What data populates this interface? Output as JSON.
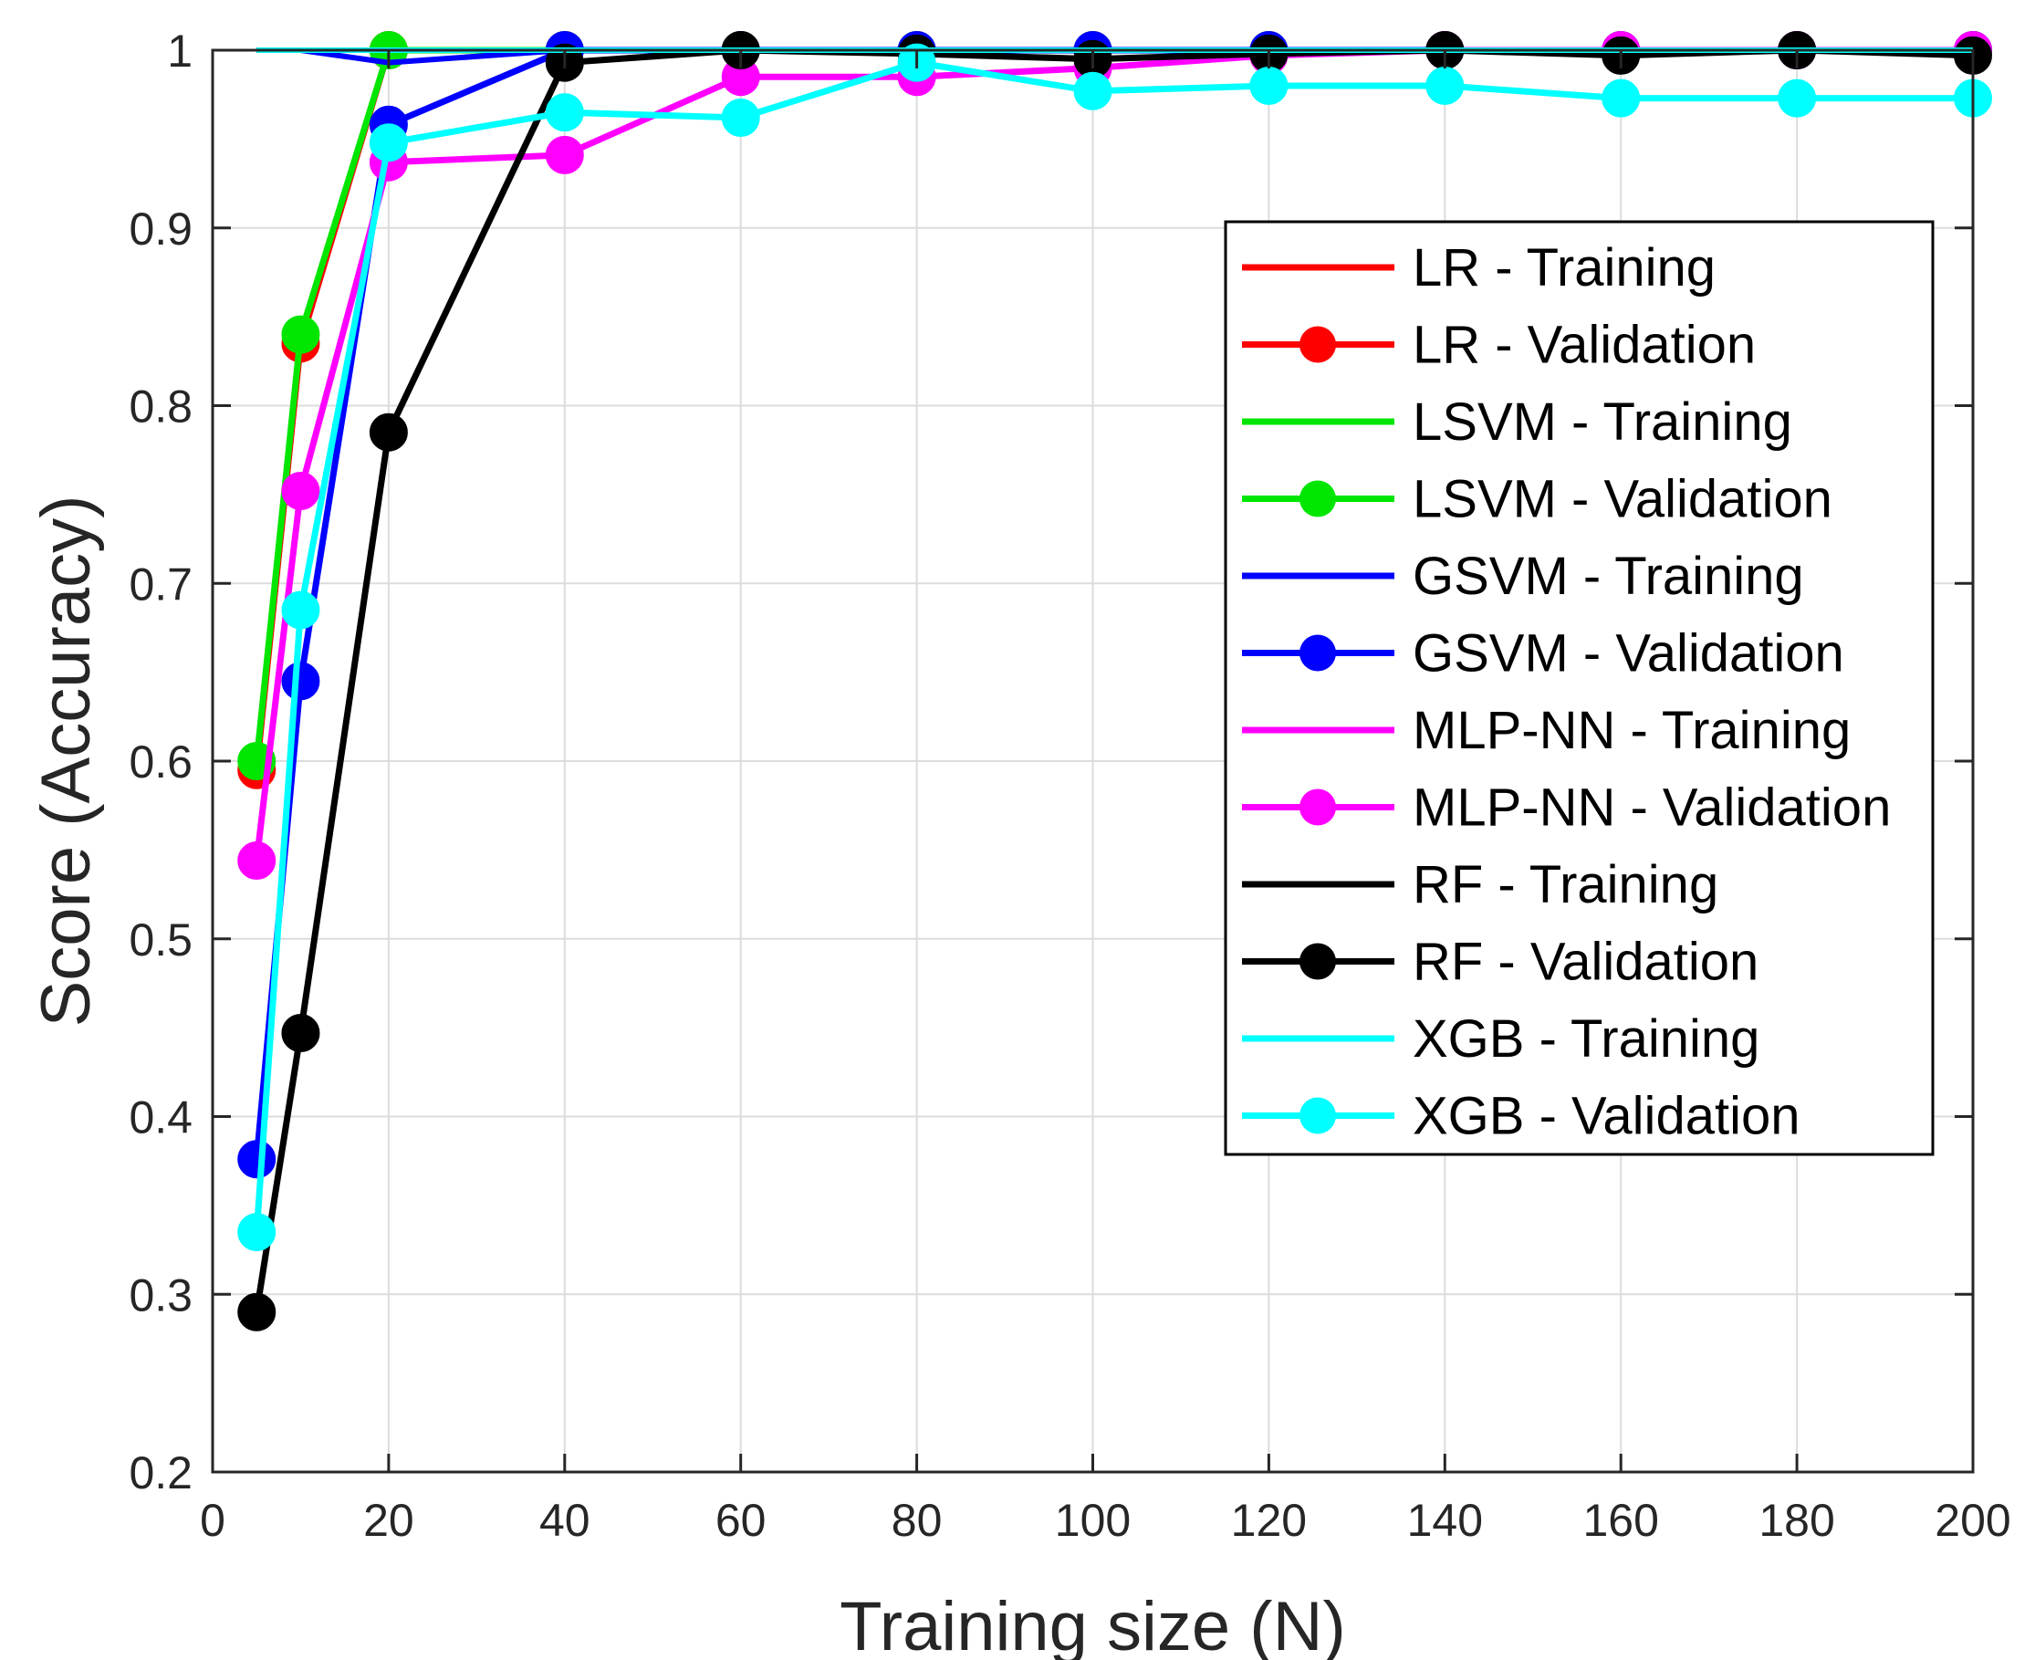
{
  "chart_data": {
    "type": "line",
    "title": "",
    "xlabel": "Training size (N)",
    "ylabel": "Score (Accuracy)",
    "xlim": [
      0,
      200
    ],
    "ylim": [
      0.2,
      1.0
    ],
    "xticks": [
      0,
      20,
      40,
      60,
      80,
      100,
      120,
      140,
      160,
      180,
      200
    ],
    "yticks": [
      0.2,
      0.3,
      0.4,
      0.5,
      0.6,
      0.7,
      0.8,
      0.9,
      1.0
    ],
    "xtick_labels": [
      "0",
      "20",
      "40",
      "60",
      "80",
      "100",
      "120",
      "140",
      "160",
      "180",
      "200"
    ],
    "ytick_labels": [
      "0.2",
      "0.3",
      "0.4",
      "0.5",
      "0.6",
      "0.7",
      "0.8",
      "0.9",
      "1"
    ],
    "grid": true,
    "legend_position": "right",
    "x": [
      5,
      10,
      20,
      40,
      60,
      80,
      100,
      120,
      140,
      160,
      180,
      200
    ],
    "series": [
      {
        "name": "LR - Training",
        "color": "#ff0000",
        "marker": "none",
        "values": [
          1,
          1,
          1,
          1,
          1,
          1,
          1,
          1,
          1,
          1,
          1,
          1
        ]
      },
      {
        "name": "LR - Validation",
        "color": "#ff0000",
        "marker": "circle",
        "values": [
          0.595,
          0.835,
          1.0,
          1.0,
          1.0,
          1.0,
          1.0,
          1.0,
          1.0,
          1.0,
          1.0,
          1.0
        ]
      },
      {
        "name": "LSVM - Training",
        "color": "#00e600",
        "marker": "none",
        "values": [
          1,
          1,
          1,
          1,
          1,
          1,
          1,
          1,
          1,
          1,
          1,
          1
        ]
      },
      {
        "name": "LSVM - Validation",
        "color": "#00e600",
        "marker": "circle",
        "values": [
          0.6,
          0.84,
          1.0,
          1.0,
          1.0,
          1.0,
          1.0,
          1.0,
          1.0,
          1.0,
          1.0,
          1.0
        ]
      },
      {
        "name": "GSVM - Training",
        "color": "#0000ff",
        "marker": "none",
        "values": [
          1.0,
          1.0,
          0.993,
          1.0,
          1.0,
          1.0,
          1.0,
          1.0,
          1.0,
          1.0,
          1.0,
          1.0
        ]
      },
      {
        "name": "GSVM - Validation",
        "color": "#0000ff",
        "marker": "circle",
        "values": [
          0.376,
          0.645,
          0.958,
          1.0,
          1.0,
          1.0,
          1.0,
          1.0,
          1.0,
          1.0,
          1.0,
          1.0
        ]
      },
      {
        "name": "MLP-NN - Training",
        "color": "#ff00ff",
        "marker": "none",
        "values": [
          1,
          1,
          1,
          1,
          1,
          1,
          1,
          1,
          1,
          1,
          1,
          1
        ]
      },
      {
        "name": "MLP-NN - Validation",
        "color": "#ff00ff",
        "marker": "circle",
        "values": [
          0.544,
          0.752,
          0.937,
          0.941,
          0.985,
          0.985,
          0.99,
          0.997,
          1.0,
          1.0,
          1.0,
          1.0
        ]
      },
      {
        "name": "RF - Training",
        "color": "#000000",
        "marker": "none",
        "values": [
          1,
          1,
          1,
          1,
          1,
          0.998,
          0.995,
          0.998,
          1.0,
          0.997,
          1.0,
          0.997
        ]
      },
      {
        "name": "RF - Validation",
        "color": "#000000",
        "marker": "circle",
        "values": [
          0.29,
          0.447,
          0.785,
          0.993,
          1.0,
          0.998,
          0.995,
          0.998,
          1.0,
          0.997,
          1.0,
          0.997
        ]
      },
      {
        "name": "XGB - Training",
        "color": "#00ffff",
        "marker": "none",
        "values": [
          1,
          1,
          1,
          1,
          1,
          1,
          1,
          1,
          1,
          1,
          1,
          1
        ]
      },
      {
        "name": "XGB - Validation",
        "color": "#00ffff",
        "marker": "circle",
        "values": [
          0.335,
          0.685,
          0.948,
          0.965,
          0.962,
          0.993,
          0.977,
          0.98,
          0.98,
          0.973,
          0.973,
          0.973
        ]
      }
    ]
  }
}
